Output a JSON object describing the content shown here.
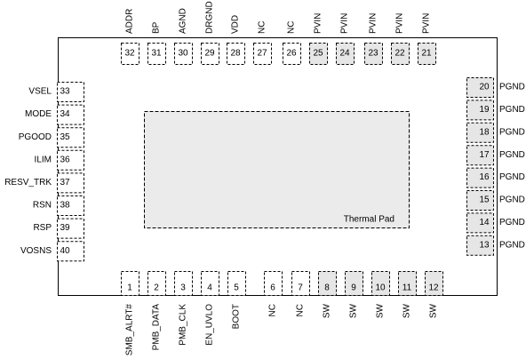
{
  "package": {
    "top_pins": [
      {
        "number": 32,
        "label": "ADDR",
        "shaded": false
      },
      {
        "number": 31,
        "label": "BP",
        "shaded": false
      },
      {
        "number": 30,
        "label": "AGND",
        "shaded": false
      },
      {
        "number": 29,
        "label": "DRGND",
        "shaded": false
      },
      {
        "number": 28,
        "label": "VDD",
        "shaded": false
      },
      {
        "number": 27,
        "label": "NC",
        "shaded": false
      },
      {
        "number": 26,
        "label": "NC",
        "shaded": false
      },
      {
        "number": 25,
        "label": "PVIN",
        "shaded": true
      },
      {
        "number": 24,
        "label": "PVIN",
        "shaded": true
      },
      {
        "number": 23,
        "label": "PVIN",
        "shaded": true
      },
      {
        "number": 22,
        "label": "PVIN",
        "shaded": true
      },
      {
        "number": 21,
        "label": "PVIN",
        "shaded": true
      }
    ],
    "bottom_pins": [
      {
        "number": 1,
        "label": "SMB_ALRT#",
        "shaded": false
      },
      {
        "number": 2,
        "label": "PMB_DATA",
        "shaded": false
      },
      {
        "number": 3,
        "label": "PMB_CLK",
        "shaded": false
      },
      {
        "number": 4,
        "label": "EN_UVLO",
        "shaded": false
      },
      {
        "number": 5,
        "label": "BOOT",
        "shaded": false
      },
      {
        "number": 6,
        "label": "NC",
        "shaded": false
      },
      {
        "number": 7,
        "label": "NC",
        "shaded": false
      },
      {
        "number": 8,
        "label": "SW",
        "shaded": true
      },
      {
        "number": 9,
        "label": "SW",
        "shaded": true
      },
      {
        "number": 10,
        "label": "SW",
        "shaded": true
      },
      {
        "number": 11,
        "label": "SW",
        "shaded": true
      },
      {
        "number": 12,
        "label": "SW",
        "shaded": true
      }
    ],
    "left_pins": [
      {
        "number": 33,
        "label": "VSEL",
        "shaded": false
      },
      {
        "number": 34,
        "label": "MODE",
        "shaded": false
      },
      {
        "number": 35,
        "label": "PGOOD",
        "shaded": false
      },
      {
        "number": 36,
        "label": "ILIM",
        "shaded": false
      },
      {
        "number": 37,
        "label": "RESV_TRK",
        "shaded": false
      },
      {
        "number": 38,
        "label": "RSN",
        "shaded": false
      },
      {
        "number": 39,
        "label": "RSP",
        "shaded": false
      },
      {
        "number": 40,
        "label": "VOSNS",
        "shaded": false
      }
    ],
    "right_pins": [
      {
        "number": 20,
        "label": "PGND",
        "shaded": true
      },
      {
        "number": 19,
        "label": "PGND",
        "shaded": true
      },
      {
        "number": 18,
        "label": "PGND",
        "shaded": true
      },
      {
        "number": 17,
        "label": "PGND",
        "shaded": true
      },
      {
        "number": 16,
        "label": "PGND",
        "shaded": true
      },
      {
        "number": 15,
        "label": "PGND",
        "shaded": true
      },
      {
        "number": 14,
        "label": "PGND",
        "shaded": true
      },
      {
        "number": 13,
        "label": "PGND",
        "shaded": true
      }
    ],
    "thermal_pad": {
      "label": "Thermal Pad"
    }
  }
}
